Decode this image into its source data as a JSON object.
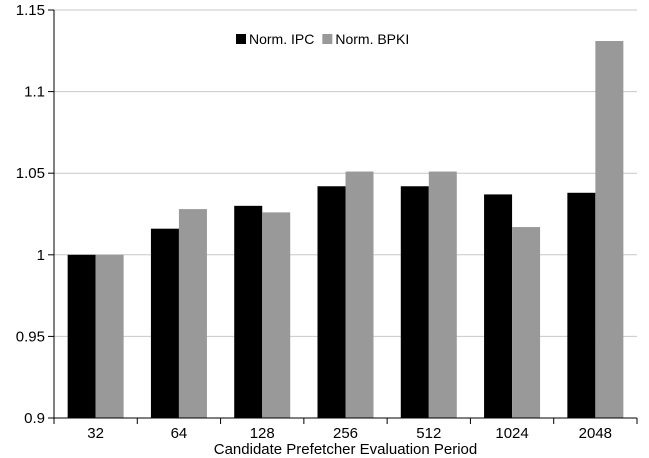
{
  "chart_data": {
    "type": "bar",
    "title": "",
    "xlabel": "Candidate Prefetcher Evaluation Period",
    "ylabel": "",
    "categories": [
      "32",
      "64",
      "128",
      "256",
      "512",
      "1024",
      "2048"
    ],
    "series": [
      {
        "name": "Norm. IPC",
        "color": "#000000",
        "values": [
          1.0,
          1.016,
          1.03,
          1.042,
          1.042,
          1.037,
          1.038
        ]
      },
      {
        "name": "Norm. BPKI",
        "color": "#999999",
        "values": [
          1.0,
          1.028,
          1.026,
          1.051,
          1.051,
          1.017,
          1.131
        ]
      }
    ],
    "ylim": [
      0.9,
      1.15
    ],
    "yticks": [
      "0.9",
      "0.95",
      "1",
      "1.05",
      "1.1",
      "1.15"
    ],
    "grid": true,
    "legend": "top-center"
  }
}
